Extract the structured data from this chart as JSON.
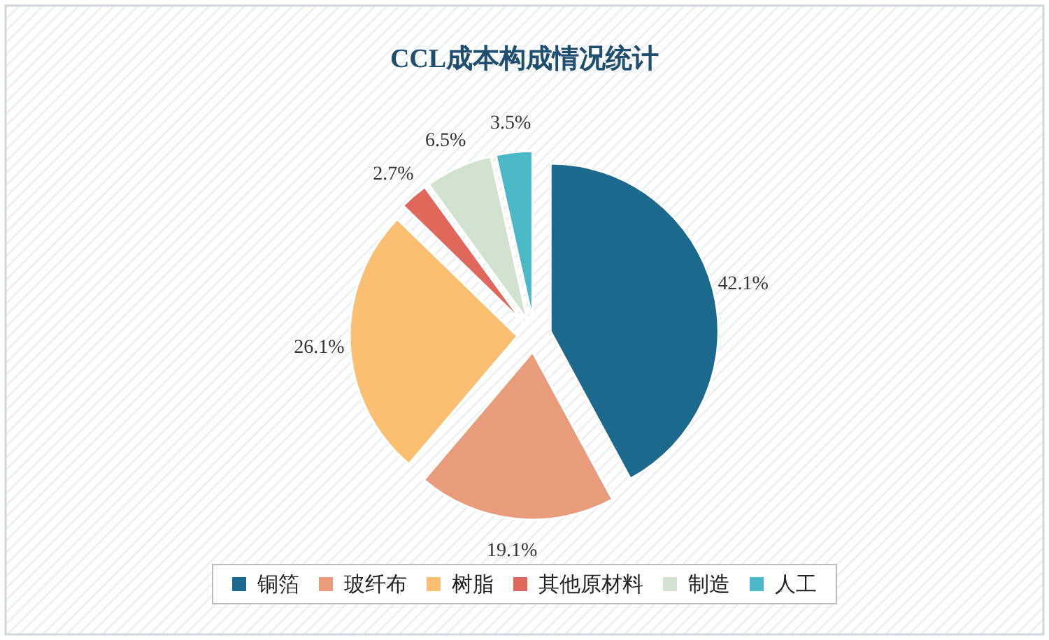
{
  "chart_data": {
    "type": "pie",
    "title": "CCL成本构成情况统计",
    "categories": [
      "铜箔",
      "玻纤布",
      "树脂",
      "其他原材料",
      "制造",
      "人工"
    ],
    "values": [
      42.1,
      19.1,
      26.1,
      2.7,
      6.5,
      3.5
    ],
    "colors": [
      "#1b6a8e",
      "#e89c7c",
      "#fcbf72",
      "#e0685a",
      "#d3e2d0",
      "#4ab8c7"
    ],
    "value_labels": [
      "42.1%",
      "19.1%",
      "26.1%",
      "2.7%",
      "6.5%",
      "3.5%"
    ],
    "legend": "bottom"
  }
}
